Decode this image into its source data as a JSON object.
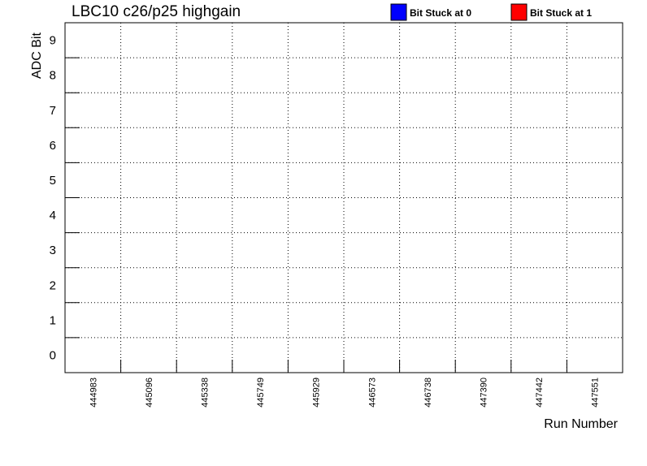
{
  "chart_data": {
    "type": "heatmap",
    "title": "LBC10 c26/p25 highgain",
    "xlabel": "Run Number",
    "ylabel": "ADC Bit",
    "categories": [
      "444983",
      "445096",
      "445338",
      "445749",
      "445929",
      "446573",
      "446738",
      "447390",
      "447442",
      "447551"
    ],
    "y_ticks": [
      "0",
      "1",
      "2",
      "3",
      "4",
      "5",
      "6",
      "7",
      "8",
      "9"
    ],
    "ylim": [
      -0.5,
      9.5
    ],
    "grid": true,
    "legend_position": "top-right",
    "legend": [
      {
        "label": "Bit Stuck at 0",
        "color": "#0000ff"
      },
      {
        "label": "Bit Stuck at 1",
        "color": "#ff0000"
      }
    ],
    "cells": []
  }
}
